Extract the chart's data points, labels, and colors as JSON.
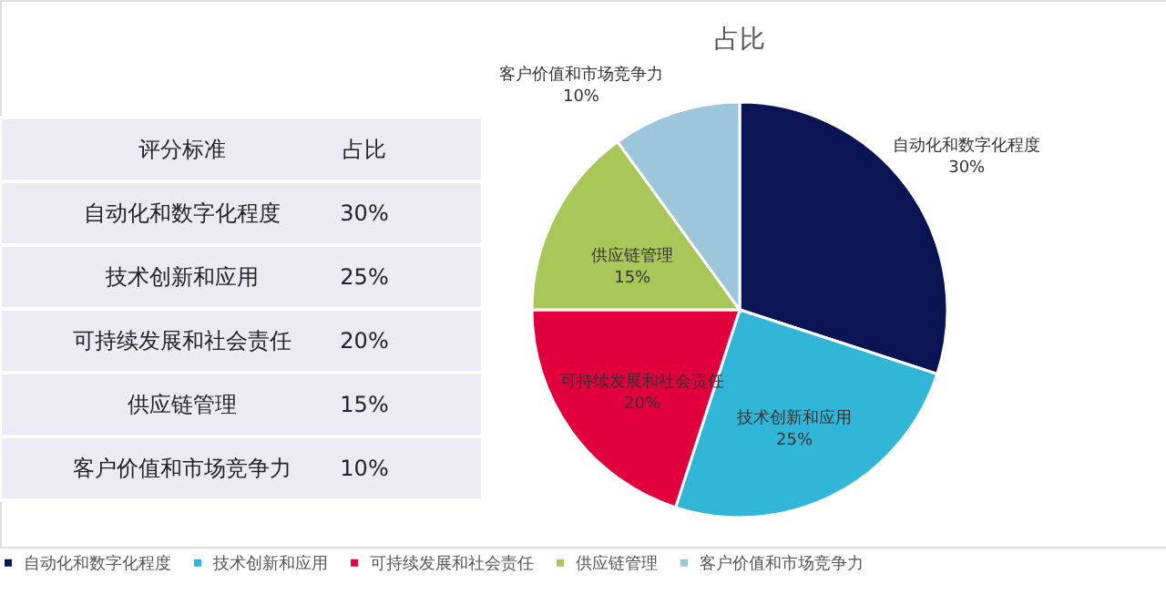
{
  "chart_data": {
    "type": "pie",
    "title": "占比",
    "categories": [
      "自动化和数字化程度",
      "技术创新和应用",
      "可持续发展和社会责任",
      "供应链管理",
      "客户价值和市场竞争力"
    ],
    "values": [
      30,
      25,
      20,
      15,
      10
    ],
    "value_labels": [
      "30%",
      "25%",
      "20%",
      "15%",
      "10%"
    ],
    "colors": [
      "#0b1452",
      "#31b6d8",
      "#e2003c",
      "#a9c759",
      "#9cc6d9"
    ],
    "annotations": [
      "评分标准",
      "占比"
    ],
    "legend": "bottom"
  }
}
